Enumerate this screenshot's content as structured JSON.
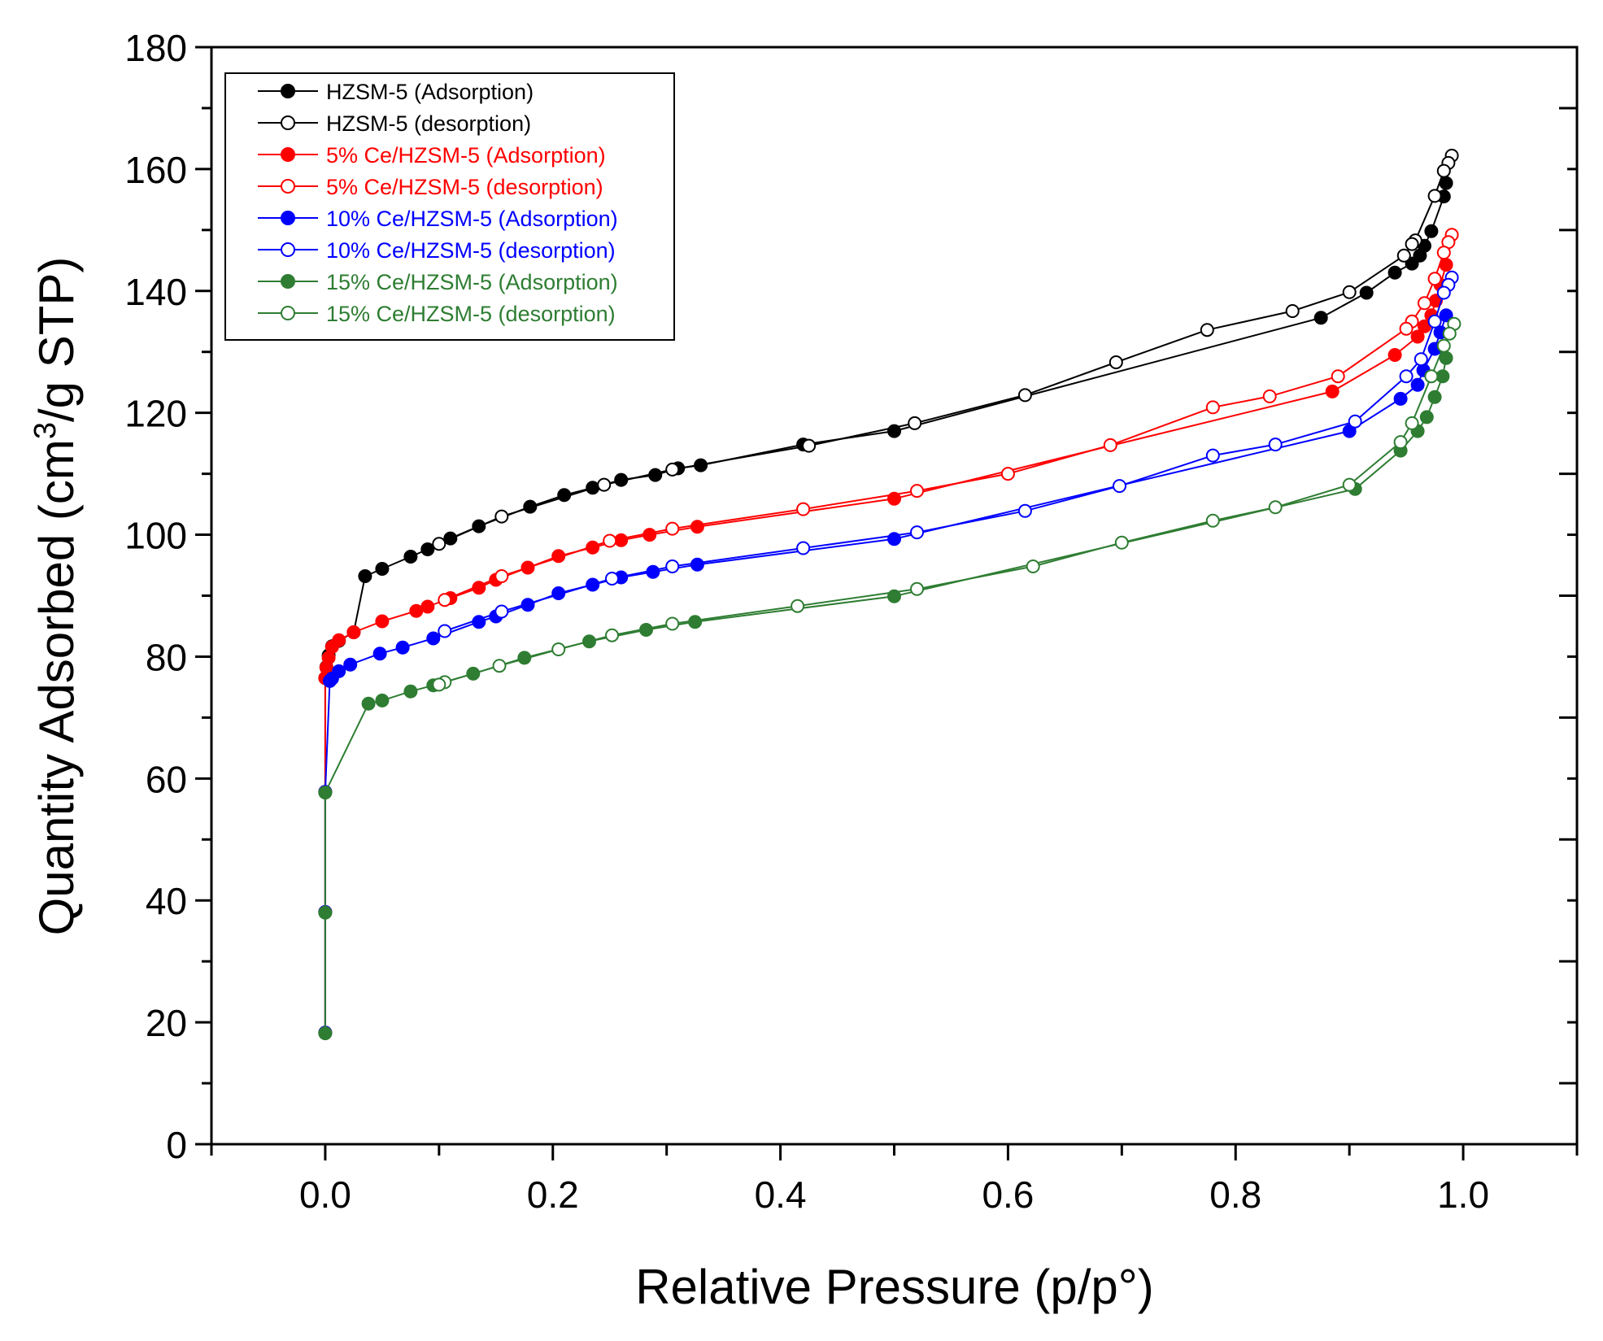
{
  "chart_data": {
    "type": "line",
    "title": "",
    "xlabel": "Relative Pressure (p/p°)",
    "ylabel": {
      "prefix": "Quantity Adsorbed (cm",
      "sup": "3",
      "suffix": "/g STP)"
    },
    "xlim": [
      -0.1,
      1.1
    ],
    "ylim": [
      0,
      180
    ],
    "x_ticks": [
      {
        "value": 0.0,
        "label": "0.0"
      },
      {
        "value": 0.2,
        "label": "0.2"
      },
      {
        "value": 0.4,
        "label": "0.4"
      },
      {
        "value": 0.6,
        "label": "0.6"
      },
      {
        "value": 0.8,
        "label": "0.8"
      },
      {
        "value": 1.0,
        "label": "1.0"
      }
    ],
    "y_ticks": [
      {
        "value": 0,
        "label": "0"
      },
      {
        "value": 20,
        "label": "20"
      },
      {
        "value": 40,
        "label": "40"
      },
      {
        "value": 60,
        "label": "60"
      },
      {
        "value": 80,
        "label": "80"
      },
      {
        "value": 100,
        "label": "100"
      },
      {
        "value": 120,
        "label": "120"
      },
      {
        "value": 140,
        "label": "140"
      },
      {
        "value": 160,
        "label": "160"
      },
      {
        "value": 180,
        "label": "180"
      }
    ],
    "grid": false,
    "legend_position": "top-left",
    "series": [
      {
        "name": "HZSM-5 (Adsorption)",
        "color": "#000000",
        "marker": "filled",
        "points": [
          [
            0.0,
            18.3
          ],
          [
            0.0,
            38.1
          ],
          [
            0.0,
            57.8
          ],
          [
            0.0,
            76.5
          ],
          [
            0.001,
            78.3
          ],
          [
            0.003,
            80.2
          ],
          [
            0.006,
            81.7
          ],
          [
            0.012,
            82.6
          ],
          [
            0.025,
            84.0
          ],
          [
            0.035,
            93.2
          ],
          [
            0.05,
            94.4
          ],
          [
            0.075,
            96.4
          ],
          [
            0.09,
            97.6
          ],
          [
            0.11,
            99.4
          ],
          [
            0.135,
            101.4
          ],
          [
            0.18,
            104.6
          ],
          [
            0.21,
            106.5
          ],
          [
            0.235,
            107.7
          ],
          [
            0.26,
            109.0
          ],
          [
            0.29,
            109.8
          ],
          [
            0.31,
            110.9
          ],
          [
            0.33,
            111.4
          ],
          [
            0.42,
            114.8
          ],
          [
            0.5,
            117.0
          ],
          [
            0.875,
            135.6
          ],
          [
            0.915,
            139.7
          ],
          [
            0.94,
            143.0
          ],
          [
            0.955,
            144.5
          ],
          [
            0.962,
            145.8
          ],
          [
            0.966,
            147.4
          ],
          [
            0.972,
            149.8
          ],
          [
            0.983,
            155.5
          ],
          [
            0.985,
            157.7
          ]
        ]
      },
      {
        "name": "HZSM-5 (desorption)",
        "color": "#000000",
        "marker": "open",
        "points": [
          [
            0.99,
            162.2
          ],
          [
            0.987,
            161.0
          ],
          [
            0.983,
            159.7
          ],
          [
            0.975,
            155.6
          ],
          [
            0.958,
            148.3
          ],
          [
            0.955,
            147.7
          ],
          [
            0.948,
            145.8
          ],
          [
            0.9,
            139.8
          ],
          [
            0.85,
            136.7
          ],
          [
            0.775,
            133.6
          ],
          [
            0.695,
            128.3
          ],
          [
            0.615,
            122.9
          ],
          [
            0.518,
            118.3
          ],
          [
            0.425,
            114.6
          ],
          [
            0.305,
            110.7
          ],
          [
            0.245,
            108.2
          ],
          [
            0.155,
            103.0
          ],
          [
            0.1,
            98.5
          ]
        ]
      },
      {
        "name": "5% Ce/HZSM-5 (Adsorption)",
        "color": "#ff0000",
        "marker": "filled",
        "points": [
          [
            0.0,
            18.3
          ],
          [
            0.0,
            38.1
          ],
          [
            0.0,
            57.8
          ],
          [
            0.0,
            76.5
          ],
          [
            0.001,
            78.2
          ],
          [
            0.003,
            79.8
          ],
          [
            0.006,
            81.6
          ],
          [
            0.012,
            82.7
          ],
          [
            0.025,
            84.0
          ],
          [
            0.05,
            85.8
          ],
          [
            0.08,
            87.5
          ],
          [
            0.09,
            88.2
          ],
          [
            0.11,
            89.6
          ],
          [
            0.135,
            91.3
          ],
          [
            0.15,
            92.6
          ],
          [
            0.178,
            94.6
          ],
          [
            0.205,
            96.5
          ],
          [
            0.235,
            97.9
          ],
          [
            0.26,
            99.1
          ],
          [
            0.285,
            100.0
          ],
          [
            0.327,
            101.3
          ],
          [
            0.5,
            105.9
          ],
          [
            0.885,
            123.5
          ],
          [
            0.94,
            129.5
          ],
          [
            0.96,
            132.5
          ],
          [
            0.966,
            134.2
          ],
          [
            0.972,
            136.0
          ],
          [
            0.976,
            138.4
          ],
          [
            0.98,
            141.0
          ],
          [
            0.985,
            144.3
          ]
        ]
      },
      {
        "name": "5% Ce/HZSM-5 (desorption)",
        "color": "#ff0000",
        "marker": "open",
        "points": [
          [
            0.99,
            149.2
          ],
          [
            0.987,
            148.0
          ],
          [
            0.983,
            146.3
          ],
          [
            0.975,
            142.0
          ],
          [
            0.966,
            138.0
          ],
          [
            0.955,
            135.0
          ],
          [
            0.95,
            133.8
          ],
          [
            0.89,
            126.0
          ],
          [
            0.83,
            122.7
          ],
          [
            0.78,
            120.9
          ],
          [
            0.69,
            114.7
          ],
          [
            0.6,
            110.0
          ],
          [
            0.52,
            107.2
          ],
          [
            0.42,
            104.2
          ],
          [
            0.305,
            101.0
          ],
          [
            0.25,
            99.0
          ],
          [
            0.155,
            93.2
          ],
          [
            0.105,
            89.3
          ]
        ]
      },
      {
        "name": "10% Ce/HZSM-5 (Adsorption)",
        "color": "#0000ff",
        "marker": "filled",
        "points": [
          [
            0.0,
            18.3
          ],
          [
            0.0,
            38.1
          ],
          [
            0.0,
            57.8
          ],
          [
            0.004,
            76.0
          ],
          [
            0.006,
            76.4
          ],
          [
            0.012,
            77.6
          ],
          [
            0.022,
            78.7
          ],
          [
            0.048,
            80.5
          ],
          [
            0.068,
            81.5
          ],
          [
            0.095,
            83.0
          ],
          [
            0.135,
            85.7
          ],
          [
            0.15,
            86.6
          ],
          [
            0.178,
            88.5
          ],
          [
            0.205,
            90.4
          ],
          [
            0.235,
            91.8
          ],
          [
            0.26,
            93.0
          ],
          [
            0.288,
            93.9
          ],
          [
            0.327,
            95.1
          ],
          [
            0.5,
            99.3
          ],
          [
            0.9,
            117.0
          ],
          [
            0.945,
            122.3
          ],
          [
            0.96,
            124.6
          ],
          [
            0.965,
            127.0
          ],
          [
            0.975,
            130.5
          ],
          [
            0.98,
            133.2
          ],
          [
            0.985,
            136.0
          ]
        ]
      },
      {
        "name": "10% Ce/HZSM-5 (desorption)",
        "color": "#0000ff",
        "marker": "open",
        "points": [
          [
            0.99,
            142.2
          ],
          [
            0.987,
            141.0
          ],
          [
            0.983,
            139.7
          ],
          [
            0.975,
            135.0
          ],
          [
            0.963,
            128.8
          ],
          [
            0.95,
            126.0
          ],
          [
            0.905,
            118.6
          ],
          [
            0.835,
            114.8
          ],
          [
            0.78,
            113.0
          ],
          [
            0.698,
            108.0
          ],
          [
            0.615,
            103.9
          ],
          [
            0.52,
            100.4
          ],
          [
            0.42,
            97.8
          ],
          [
            0.305,
            94.8
          ],
          [
            0.252,
            92.8
          ],
          [
            0.155,
            87.4
          ],
          [
            0.105,
            84.2
          ]
        ]
      },
      {
        "name": "15% Ce/HZSM-5 (Adsorption)",
        "color": "#2e7d32",
        "marker": "filled",
        "points": [
          [
            0.0,
            18.2
          ],
          [
            0.0,
            38.0
          ],
          [
            0.0,
            57.7
          ],
          [
            0.038,
            72.3
          ],
          [
            0.05,
            72.8
          ],
          [
            0.075,
            74.3
          ],
          [
            0.095,
            75.3
          ],
          [
            0.13,
            77.2
          ],
          [
            0.175,
            79.8
          ],
          [
            0.232,
            82.5
          ],
          [
            0.282,
            84.4
          ],
          [
            0.325,
            85.7
          ],
          [
            0.5,
            89.9
          ],
          [
            0.905,
            107.5
          ],
          [
            0.945,
            113.8
          ],
          [
            0.96,
            117.0
          ],
          [
            0.968,
            119.3
          ],
          [
            0.975,
            122.6
          ],
          [
            0.982,
            126.0
          ],
          [
            0.985,
            129.0
          ]
        ]
      },
      {
        "name": "15% Ce/HZSM-5 (desorption)",
        "color": "#2e7d32",
        "marker": "open",
        "points": [
          [
            0.992,
            134.6
          ],
          [
            0.988,
            133.0
          ],
          [
            0.983,
            131.0
          ],
          [
            0.972,
            126.0
          ],
          [
            0.955,
            118.3
          ],
          [
            0.945,
            115.2
          ],
          [
            0.9,
            108.2
          ],
          [
            0.835,
            104.5
          ],
          [
            0.78,
            102.3
          ],
          [
            0.7,
            98.7
          ],
          [
            0.622,
            94.8
          ],
          [
            0.52,
            91.1
          ],
          [
            0.415,
            88.3
          ],
          [
            0.305,
            85.4
          ],
          [
            0.252,
            83.5
          ],
          [
            0.205,
            81.2
          ],
          [
            0.153,
            78.5
          ],
          [
            0.105,
            75.8
          ],
          [
            0.1,
            75.4
          ]
        ]
      }
    ]
  }
}
